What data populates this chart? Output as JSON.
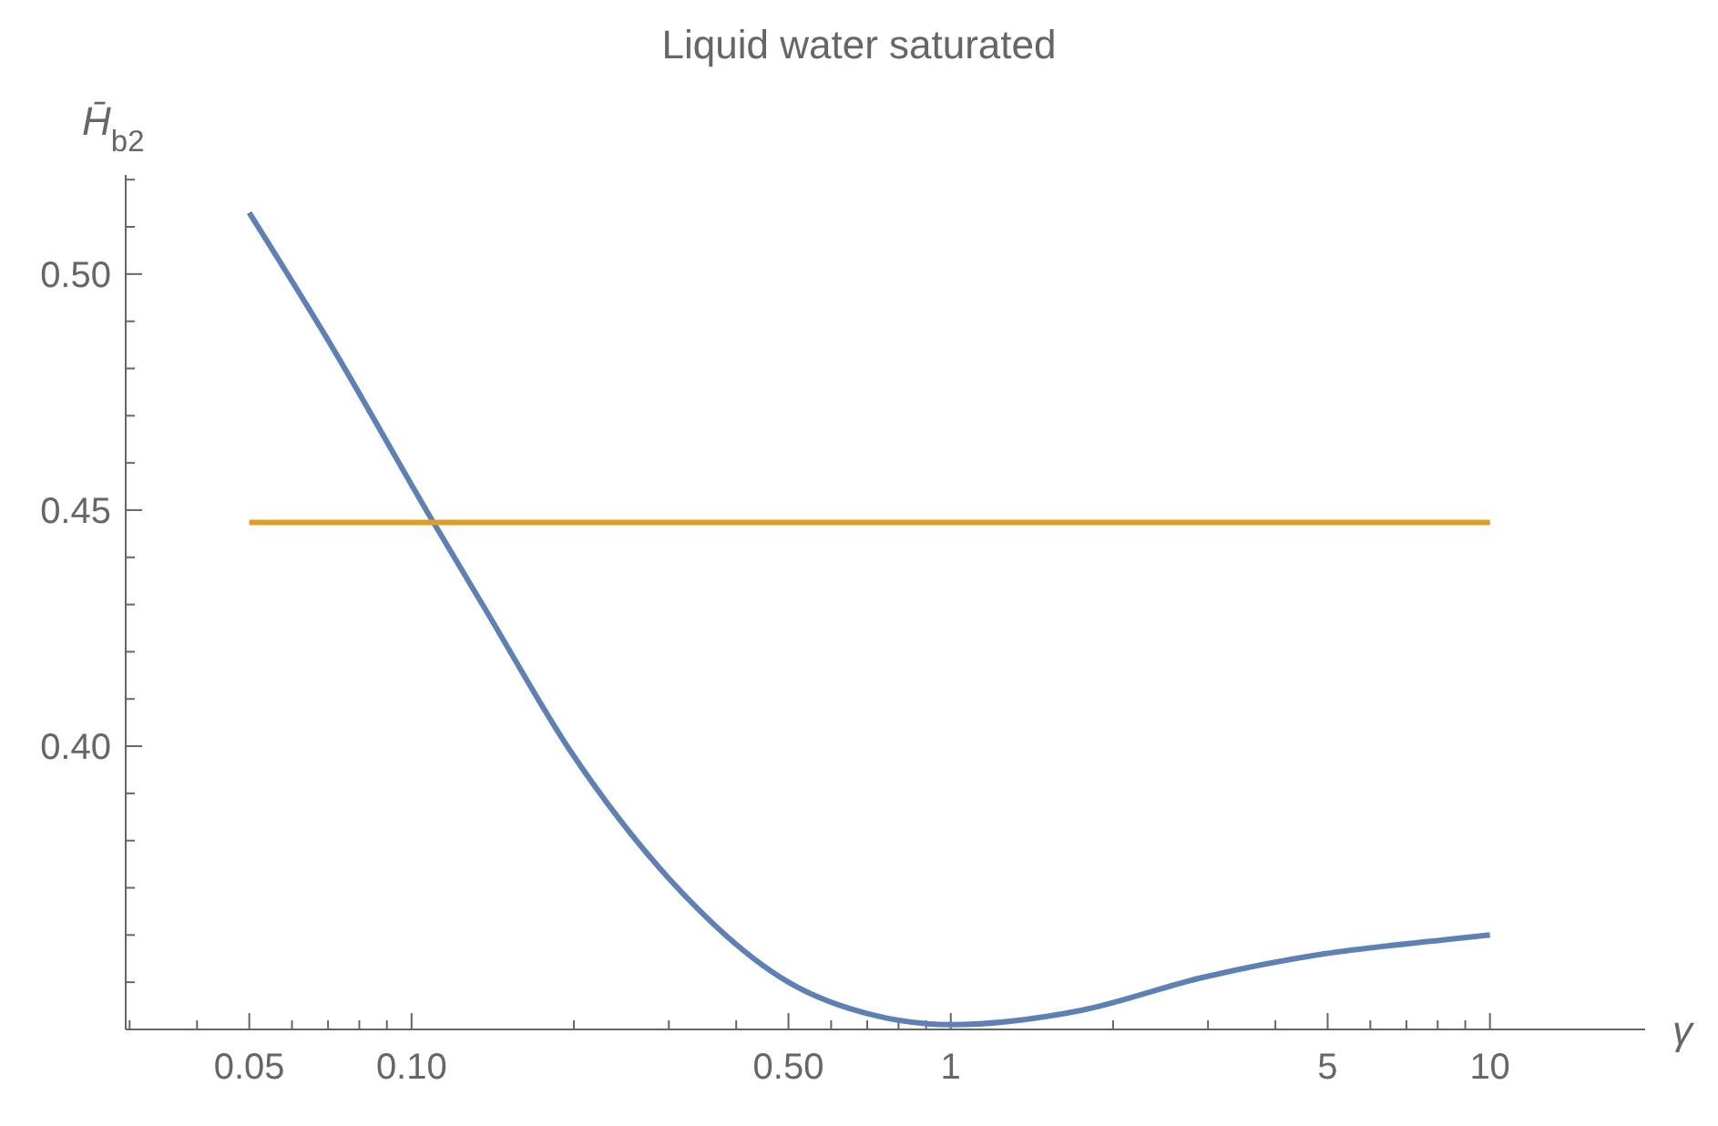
{
  "chart_data": {
    "type": "line",
    "title": "Liquid water saturated",
    "xlabel": "γ",
    "ylabel": "H̄$_{b2}$",
    "log": "x",
    "grid": false,
    "marker": "none",
    "line_style": "solid",
    "xlim": [
      0.0295,
      19.4
    ],
    "ylim": [
      0.34,
      0.521
    ],
    "xticks": [
      {
        "value": 0.03,
        "label": null
      },
      {
        "value": 0.04,
        "label": null
      },
      0.05,
      {
        "value": 0.06,
        "label": null
      },
      {
        "value": 0.07,
        "label": null
      },
      {
        "value": 0.08,
        "label": null
      },
      {
        "value": 0.09,
        "label": null
      },
      {
        "value": 0.1,
        "label": "0.10"
      },
      {
        "value": 0.2,
        "label": null
      },
      {
        "value": 0.3,
        "label": null
      },
      {
        "value": 0.4,
        "label": null
      },
      {
        "value": 0.5,
        "label": "0.50"
      },
      {
        "value": 0.6,
        "label": null
      },
      {
        "value": 0.7,
        "label": null
      },
      {
        "value": 0.8,
        "label": null
      },
      {
        "value": 0.9,
        "label": null
      },
      1,
      {
        "value": 2,
        "label": null
      },
      {
        "value": 3,
        "label": null
      },
      {
        "value": 4,
        "label": null
      },
      5,
      {
        "value": 6,
        "label": null
      },
      {
        "value": 7,
        "label": null
      },
      {
        "value": 8,
        "label": null
      },
      {
        "value": 9,
        "label": null
      },
      10
    ],
    "yticks": [
      {
        "value": 0.34,
        "label": null
      },
      {
        "value": 0.35,
        "label": null
      },
      {
        "value": 0.36,
        "label": null
      },
      {
        "value": 0.37,
        "label": null
      },
      {
        "value": 0.38,
        "label": null
      },
      {
        "value": 0.39,
        "label": null
      },
      {
        "value": 0.4,
        "label": "0.40"
      },
      {
        "value": 0.41,
        "label": null
      },
      {
        "value": 0.42,
        "label": null
      },
      {
        "value": 0.43,
        "label": null
      },
      {
        "value": 0.44,
        "label": null
      },
      {
        "value": 0.45,
        "label": "0.45"
      },
      {
        "value": 0.46,
        "label": null
      },
      {
        "value": 0.47,
        "label": null
      },
      {
        "value": 0.48,
        "label": null
      },
      {
        "value": 0.49,
        "label": null
      },
      {
        "value": 0.5,
        "label": "0.50"
      },
      {
        "value": 0.51,
        "label": null
      },
      {
        "value": 0.52,
        "label": null
      }
    ],
    "series": [
      {
        "color": "#5e81b5",
        "x": [
          0.05,
          0.07,
          0.109,
          0.137,
          0.197,
          0.3,
          0.5,
          0.72,
          1,
          1.74,
          2.93,
          4.92,
          8.26,
          10
        ],
        "values": [
          0.513,
          0.486,
          0.448,
          0.429,
          0.399,
          0.372,
          0.35,
          0.343,
          0.341,
          0.344,
          0.351,
          0.356,
          0.359,
          0.36
        ]
      },
      {
        "color": "#e19c24",
        "x": [
          0.05,
          10
        ],
        "values": [
          0.4474,
          0.4474
        ]
      }
    ]
  }
}
